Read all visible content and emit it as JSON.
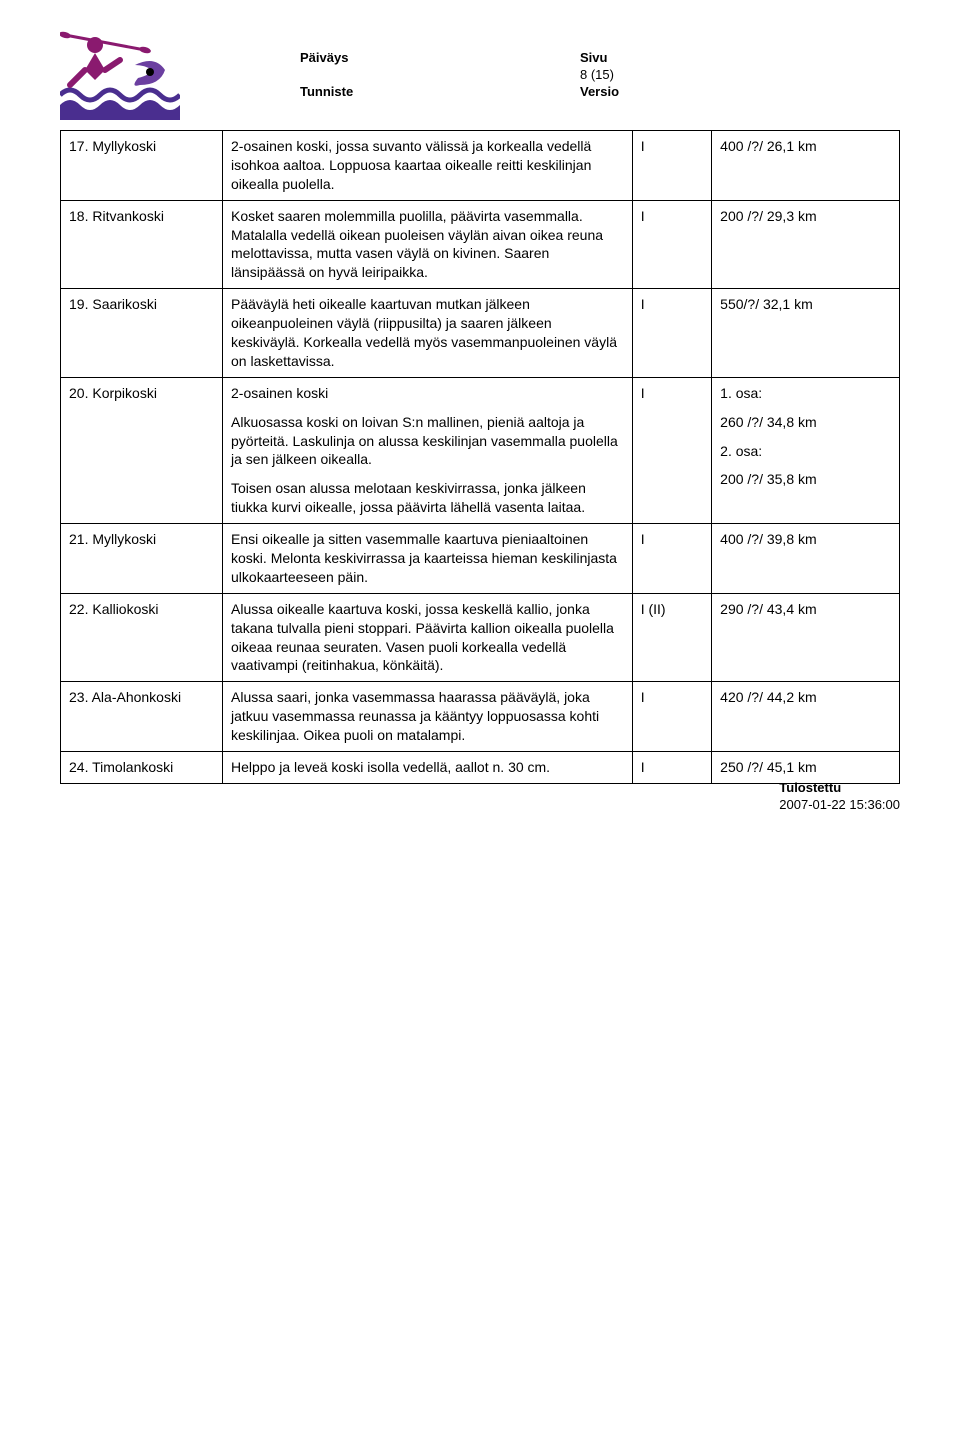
{
  "header": {
    "labels": {
      "paivays": "Päiväys",
      "sivu": "Sivu",
      "tunniste": "Tunniste",
      "versio": "Versio"
    },
    "page_number": "8 (15)"
  },
  "logo": {
    "wave_color": "#4a2e8f",
    "figure_color": "#8a1a6f",
    "paddle_color": "#8a1a6f",
    "swirl_color": "#6b3fa0"
  },
  "rows": [
    {
      "name": "17. Myllykoski",
      "desc_parts": [
        "2-osainen koski, jossa suvanto välissä ja korkealla vedellä isohkoa aaltoa. Loppuosa kaartaa oikealle reitti keskilinjan oikealla puolella."
      ],
      "grade": "I",
      "dist": "400 /?/ 26,1 km"
    },
    {
      "name": "18. Ritvankoski",
      "desc_parts": [
        "Kosket saaren molemmilla puolilla, päävirta vasemmalla. Matalalla vedellä oikean puoleisen väylän aivan oikea reuna melottavissa, mutta vasen väylä on kivinen. Saaren länsipäässä on hyvä leiripaikka."
      ],
      "grade": "I",
      "dist": "200 /?/ 29,3 km"
    },
    {
      "name": "19. Saarikoski",
      "desc_parts": [
        "Pääväylä heti oikealle kaartuvan mutkan jälkeen oikeanpuoleinen väylä (riippusilta) ja saaren jälkeen keskiväylä. Korkealla vedellä myös vasemmanpuoleinen väylä on laskettavissa."
      ],
      "grade": "I",
      "dist": "550/?/ 32,1 km"
    },
    {
      "name": "20. Korpikoski",
      "desc_parts": [
        "2-osainen koski",
        "Alkuosassa koski on loivan S:n mallinen, pieniä aaltoja ja pyörteitä. Laskulinja on alussa keskilinjan vasemmalla puolella ja sen jälkeen oikealla.",
        "Toisen osan alussa melotaan keskivirrassa, jonka jälkeen tiukka kurvi oikealle, jossa päävirta lähellä vasenta laitaa."
      ],
      "grade": "I",
      "dist_parts": [
        "1. osa:",
        "260 /?/ 34,8 km",
        "2. osa:",
        "200 /?/ 35,8 km"
      ]
    },
    {
      "name": "21. Myllykoski",
      "desc_parts": [
        "Ensi oikealle ja sitten vasemmalle kaartuva pieniaaltoinen koski. Melonta keskivirrassa ja kaarteissa hieman keskilinjasta ulkokaarteeseen päin."
      ],
      "grade": "I",
      "dist": "400 /?/ 39,8 km"
    },
    {
      "name": "22. Kalliokoski",
      "desc_parts": [
        "Alussa oikealle kaartuva koski, jossa keskellä kallio, jonka takana tulvalla pieni stoppari. Päävirta kallion oikealla puolella oikeaa reunaa seuraten. Vasen puoli korkealla vedellä vaativampi (reitinhakua, könkäitä)."
      ],
      "grade": "I (II)",
      "dist": "290 /?/ 43,4 km"
    },
    {
      "name": "23. Ala-Ahonkoski",
      "desc_parts": [
        "Alussa saari, jonka vasemmassa haarassa pääväylä, joka jatkuu vasemmassa reunassa ja kääntyy loppuosassa kohti keskilinjaa. Oikea puoli on matalampi."
      ],
      "grade": "I",
      "dist": "420 /?/ 44,2 km"
    },
    {
      "name": "24. Timolankoski",
      "desc_parts": [
        "Helppo ja leveä koski isolla vedellä, aallot n. 30 cm."
      ],
      "grade": "I",
      "dist": "250 /?/ 45,1 km"
    }
  ],
  "footer": {
    "label": "Tulostettu",
    "timestamp": "2007-01-22 15:36:00"
  }
}
